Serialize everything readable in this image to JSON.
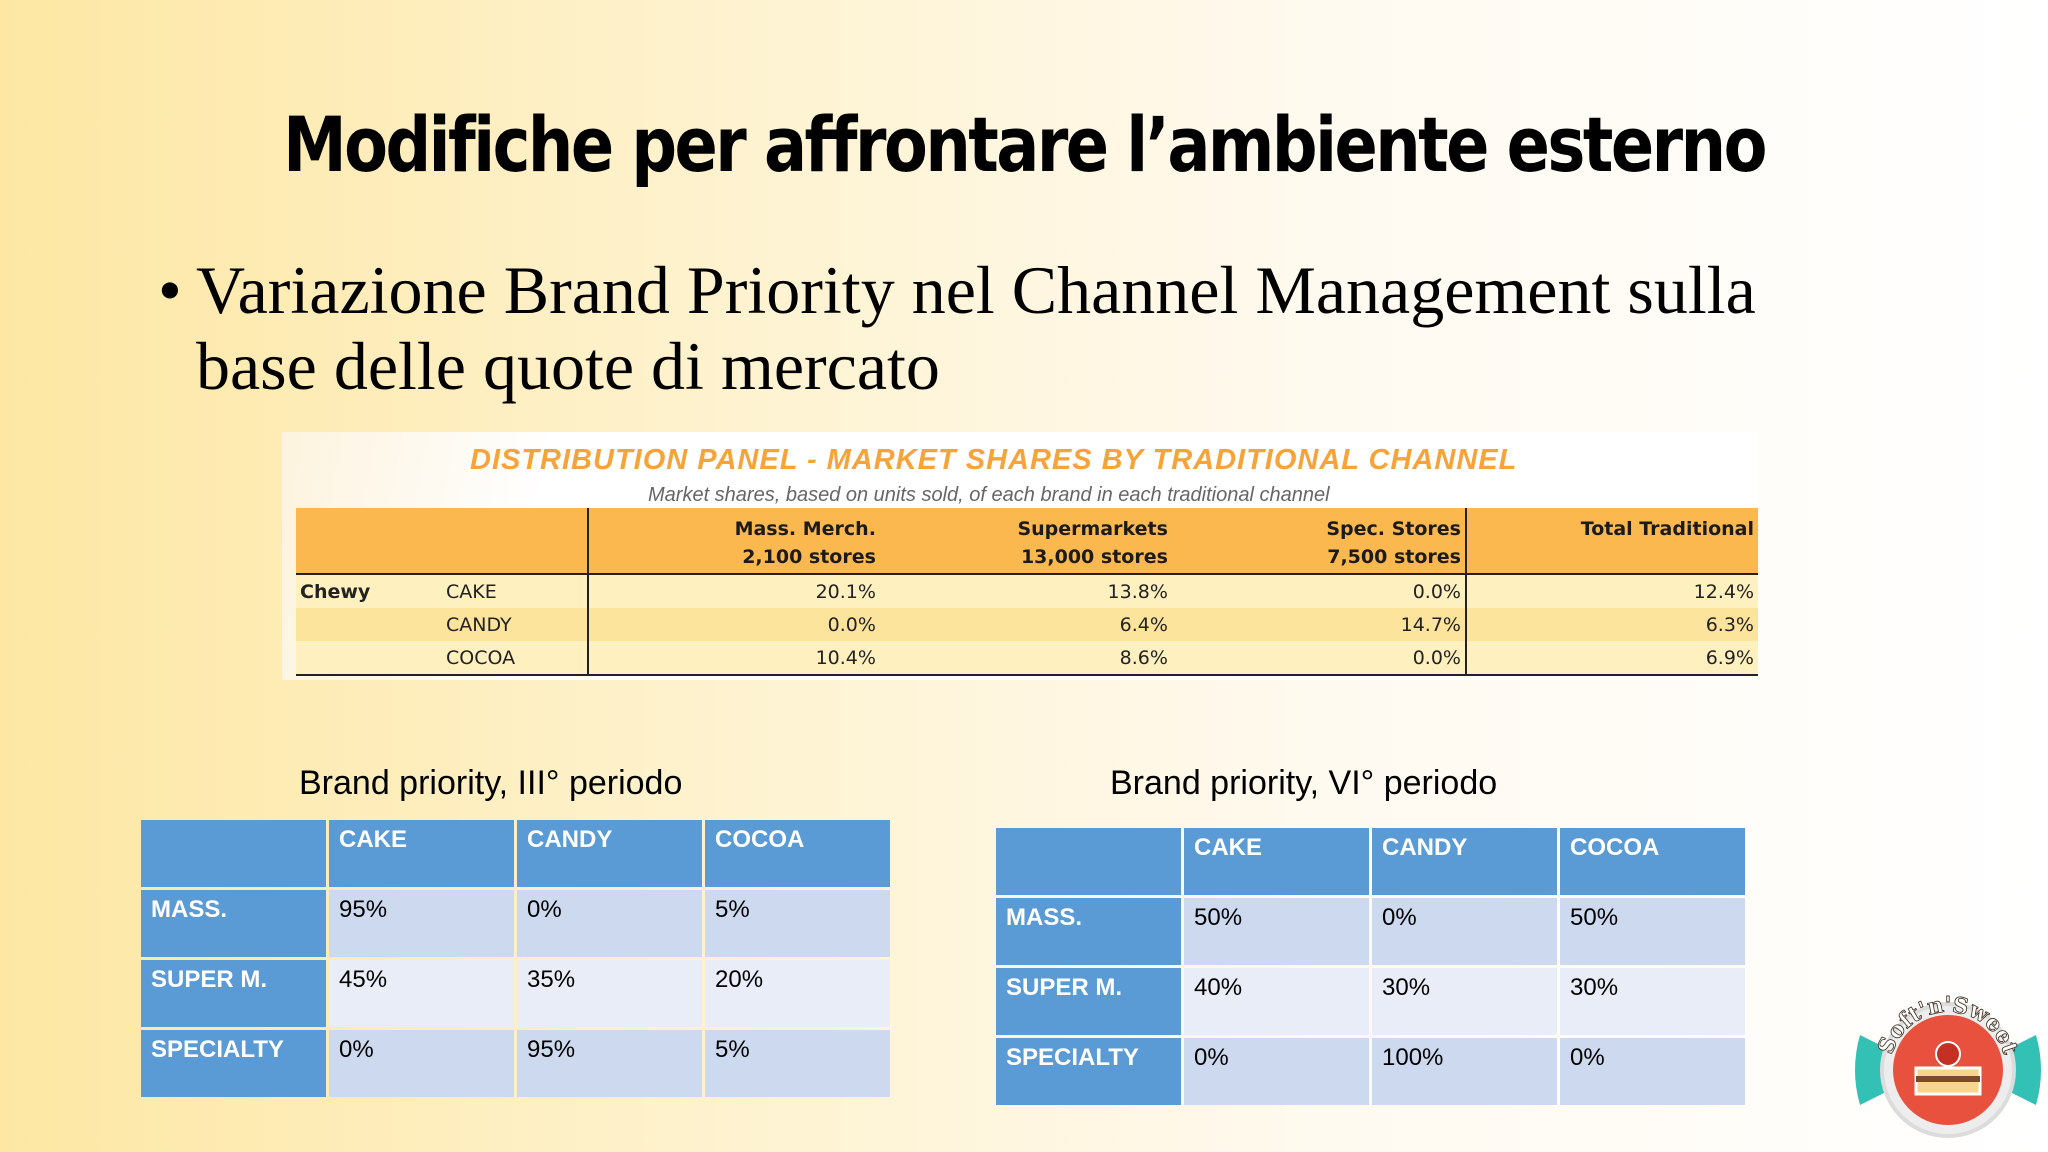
{
  "slide": {
    "title": "Modifiche per affrontare l’ambiente esterno",
    "bullet_symbol": "•",
    "bullet_text": "Variazione Brand Priority nel Channel Management sulla base delle quote di mercato"
  },
  "distribution_panel": {
    "title": "DISTRIBUTION PANEL  -  MARKET SHARES BY TRADITIONAL CHANNEL",
    "subtitle": "Market shares, based on units sold, of each brand in each traditional channel",
    "columns": [
      {
        "name": "Mass. Merch.",
        "stores": "2,100 stores"
      },
      {
        "name": "Supermarkets",
        "stores": "13,000 stores"
      },
      {
        "name": "Spec. Stores",
        "stores": "7,500 stores"
      },
      {
        "name": "Total Traditional",
        "stores": ""
      }
    ],
    "company": "Chewy",
    "rows": [
      {
        "brand": "CAKE",
        "values": [
          "20.1%",
          "13.8%",
          "0.0%",
          "12.4%"
        ]
      },
      {
        "brand": "CANDY",
        "values": [
          "0.0%",
          "6.4%",
          "14.7%",
          "6.3%"
        ]
      },
      {
        "brand": "COCOA",
        "values": [
          "10.4%",
          "8.6%",
          "0.0%",
          "6.9%"
        ]
      }
    ]
  },
  "priority_iii": {
    "caption": "Brand priority, III° periodo",
    "headers": [
      "CAKE",
      "CANDY",
      "COCOA"
    ],
    "rows": [
      {
        "label": "MASS.",
        "values": [
          "95%",
          "0%",
          "5%"
        ]
      },
      {
        "label": "SUPER M.",
        "values": [
          "45%",
          "35%",
          "20%"
        ]
      },
      {
        "label": "SPECIALTY",
        "values": [
          "0%",
          "95%",
          "5%"
        ]
      }
    ]
  },
  "priority_vi": {
    "caption": "Brand priority, VI° periodo",
    "headers": [
      "CAKE",
      "CANDY",
      "COCOA"
    ],
    "rows": [
      {
        "label": "MASS.",
        "values": [
          "50%",
          "0%",
          "50%"
        ]
      },
      {
        "label": "SUPER M.",
        "values": [
          "40%",
          "30%",
          "30%"
        ]
      },
      {
        "label": "SPECIALTY",
        "values": [
          "0%",
          "100%",
          "0%"
        ]
      }
    ]
  },
  "logo": {
    "text": "Soft'n'Sweet",
    "colors": {
      "ribbon": "#33c0b5",
      "badge": "#e8513e",
      "ring": "#e9e9e9"
    }
  }
}
